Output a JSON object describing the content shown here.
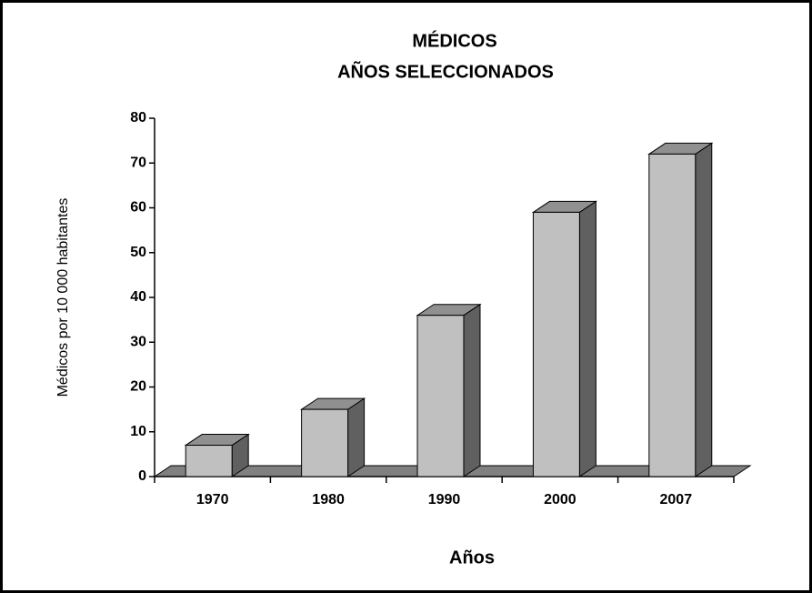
{
  "chart_data": {
    "type": "bar3d",
    "title": "MÉDICOS",
    "subtitle": "AÑOS SELECCIONADOS",
    "x_label": "Años",
    "y_label": "Médicos por 10 000 habitantes",
    "categories": [
      "1970",
      "1980",
      "1990",
      "2000",
      "2007"
    ],
    "values": [
      7,
      15,
      36,
      59,
      72
    ],
    "color": "#c0c0c0",
    "ylim": [
      0,
      80
    ],
    "yticks": [
      0,
      10,
      20,
      30,
      40,
      50,
      60,
      70,
      80
    ],
    "grid": false
  }
}
